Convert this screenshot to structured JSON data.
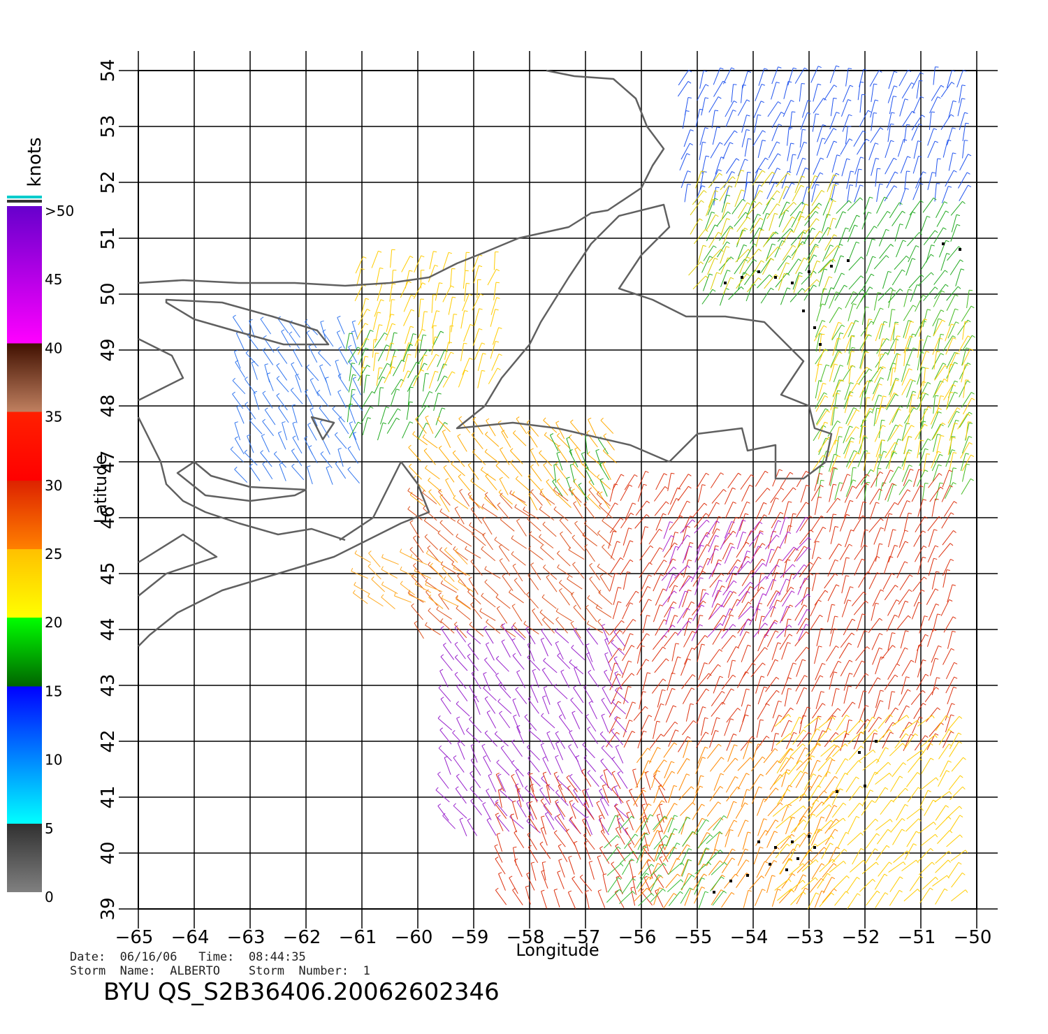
{
  "header": {
    "date_line": "Date:  06/16/06   Time:  08:44:35",
    "storm_line": "Storm  Name:  ALBERTO    Storm  Number:  1",
    "product_line": "BYU  QS_S2B36406.20062602346"
  },
  "axes": {
    "x_label": "Longitude",
    "y_label": "Latitude",
    "x_ticks": [
      "−65",
      "−64",
      "−63",
      "−62",
      "−61",
      "−60",
      "−59",
      "−58",
      "−57",
      "−56",
      "−55",
      "−54",
      "−53",
      "−52",
      "−51",
      "−50"
    ],
    "y_ticks": [
      "54",
      "53",
      "52",
      "51",
      "50",
      "49",
      "48",
      "47",
      "46",
      "45",
      "44",
      "43",
      "42",
      "41",
      "40",
      "39"
    ],
    "lon_range": [
      -65,
      -50
    ],
    "lat_range": [
      39,
      54
    ]
  },
  "colorbar": {
    "unit": "knots",
    "labels": [
      ">50",
      "45",
      "40",
      "35",
      "30",
      "25",
      "20",
      "15",
      "10",
      "5",
      "0"
    ],
    "stops": [
      {
        "knots": 0,
        "color": "#808080"
      },
      {
        "knots": 5,
        "color": "#303030"
      },
      {
        "knots": 5,
        "color": "#00ffff"
      },
      {
        "knots": 15,
        "color": "#0000ff"
      },
      {
        "knots": 15,
        "color": "#006400"
      },
      {
        "knots": 20,
        "color": "#00ff00"
      },
      {
        "knots": 20,
        "color": "#ffff00"
      },
      {
        "knots": 25,
        "color": "#ffc000"
      },
      {
        "knots": 25,
        "color": "#ff8000"
      },
      {
        "knots": 30,
        "color": "#dd2200"
      },
      {
        "knots": 30,
        "color": "#ff0000"
      },
      {
        "knots": 35,
        "color": "#ff2000"
      },
      {
        "knots": 35,
        "color": "#c08060"
      },
      {
        "knots": 40,
        "color": "#401000"
      },
      {
        "knots": 40,
        "color": "#ff00ff"
      },
      {
        "knots": 50,
        "color": "#6600cc"
      }
    ]
  },
  "wind_regions": [
    {
      "lon": [
        -55.2,
        -50.2
      ],
      "lat": [
        51.8,
        53.9
      ],
      "dir": 20,
      "color": "#2255ee",
      "note": "north-east blue"
    },
    {
      "lon": [
        -54.8,
        -50.2
      ],
      "lat": [
        50.0,
        51.8
      ],
      "dir": 30,
      "color": "#22aa22"
    },
    {
      "lon": [
        -55.0,
        -52.5
      ],
      "lat": [
        50.2,
        52.2
      ],
      "dir": 30,
      "color": "#ddcc00"
    },
    {
      "lon": [
        -63.2,
        -61.0
      ],
      "lat": [
        46.8,
        49.4
      ],
      "dir": -30,
      "color": "#3377ee"
    },
    {
      "lon": [
        -61.2,
        -59.6
      ],
      "lat": [
        47.6,
        49.4
      ],
      "dir": 20,
      "color": "#22aa22"
    },
    {
      "lon": [
        -61.0,
        -58.5
      ],
      "lat": [
        48.5,
        50.8
      ],
      "dir": 15,
      "color": "#ffcc00"
    },
    {
      "lon": [
        -60.0,
        -56.5
      ],
      "lat": [
        46.3,
        47.6
      ],
      "dir": -40,
      "color": "#ffaa00"
    },
    {
      "lon": [
        -57.5,
        -56.5
      ],
      "lat": [
        46.5,
        47.4
      ],
      "dir": -20,
      "color": "#22aa22"
    },
    {
      "lon": [
        -52.8,
        -50.2
      ],
      "lat": [
        46.5,
        50.0
      ],
      "dir": 20,
      "color": "#44bb22"
    },
    {
      "lon": [
        -52.8,
        -50.2
      ],
      "lat": [
        47.0,
        49.5
      ],
      "dir": 20,
      "color": "#ffcc00"
    },
    {
      "lon": [
        -56.5,
        -50.3
      ],
      "lat": [
        42.0,
        46.8
      ],
      "dir": 25,
      "color": "#dd3311"
    },
    {
      "lon": [
        -55.5,
        -53.0
      ],
      "lat": [
        44.0,
        46.0
      ],
      "dir": 30,
      "color": "#aa22cc"
    },
    {
      "lon": [
        -60.0,
        -56.5
      ],
      "lat": [
        44.0,
        46.5
      ],
      "dir": -45,
      "color": "#dd5522"
    },
    {
      "lon": [
        -61.0,
        -59.0
      ],
      "lat": [
        44.5,
        45.3
      ],
      "dir": -55,
      "color": "#ffaa22"
    },
    {
      "lon": [
        -59.5,
        -56.3
      ],
      "lat": [
        40.5,
        44.0
      ],
      "dir": -35,
      "color": "#9922cc"
    },
    {
      "lon": [
        -58.5,
        -55.5
      ],
      "lat": [
        39.2,
        41.5
      ],
      "dir": -25,
      "color": "#dd3311"
    },
    {
      "lon": [
        -56.0,
        -52.5
      ],
      "lat": [
        39.2,
        42.0
      ],
      "dir": 30,
      "color": "#ff8800"
    },
    {
      "lon": [
        -53.5,
        -50.3
      ],
      "lat": [
        39.2,
        42.5
      ],
      "dir": 40,
      "color": "#ffcc00"
    },
    {
      "lon": [
        -56.5,
        -54.5
      ],
      "lat": [
        39.2,
        40.5
      ],
      "dir": 35,
      "color": "#33bb33"
    }
  ],
  "rain_flags": [
    [
      -54.5,
      50.2
    ],
    [
      -54.2,
      50.3
    ],
    [
      -53.9,
      50.4
    ],
    [
      -53.6,
      50.3
    ],
    [
      -53.3,
      50.2
    ],
    [
      -53.0,
      50.4
    ],
    [
      -52.6,
      50.5
    ],
    [
      -52.3,
      50.6
    ],
    [
      -53.1,
      49.7
    ],
    [
      -52.9,
      49.4
    ],
    [
      -52.8,
      49.1
    ],
    [
      -50.6,
      50.9
    ],
    [
      -50.3,
      50.8
    ],
    [
      -52.1,
      41.8
    ],
    [
      -51.8,
      42.0
    ],
    [
      -52.5,
      41.1
    ],
    [
      -52.0,
      41.2
    ],
    [
      -53.9,
      40.2
    ],
    [
      -53.6,
      40.1
    ],
    [
      -53.3,
      40.2
    ],
    [
      -53.0,
      40.3
    ],
    [
      -53.7,
      39.8
    ],
    [
      -53.4,
      39.7
    ],
    [
      -54.1,
      39.6
    ],
    [
      -54.4,
      39.5
    ],
    [
      -54.7,
      39.3
    ],
    [
      -53.2,
      39.9
    ],
    [
      -52.9,
      40.1
    ]
  ]
}
